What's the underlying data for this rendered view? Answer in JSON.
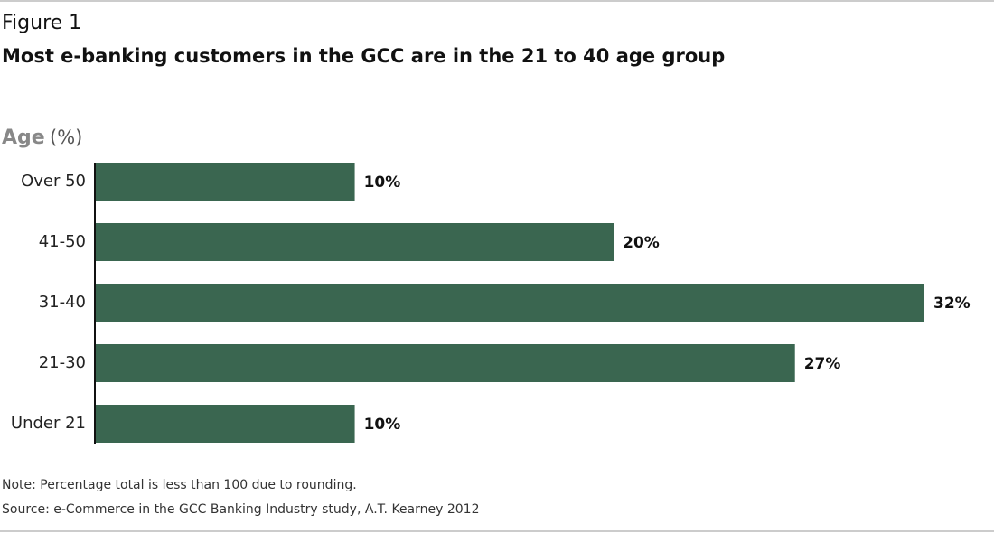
{
  "chart_data": {
    "type": "bar",
    "orientation": "horizontal",
    "figure_label": "Figure 1",
    "title": "Most e-banking customers in the GCC are in the 21 to 40 age group",
    "axis_label": "Age",
    "axis_unit": "(%)",
    "categories": [
      "Over 50",
      "41-50",
      "31-40",
      "21-30",
      "Under 21"
    ],
    "values": [
      10,
      20,
      32,
      27,
      10
    ],
    "value_labels": [
      "10%",
      "20%",
      "32%",
      "27%",
      "10%"
    ],
    "color": "#3a6650",
    "note": "Note: Percentage total is less than 100 due to rounding.",
    "source": "Source: e-Commerce in the GCC Banking Industry study, A.T. Kearney 2012"
  }
}
